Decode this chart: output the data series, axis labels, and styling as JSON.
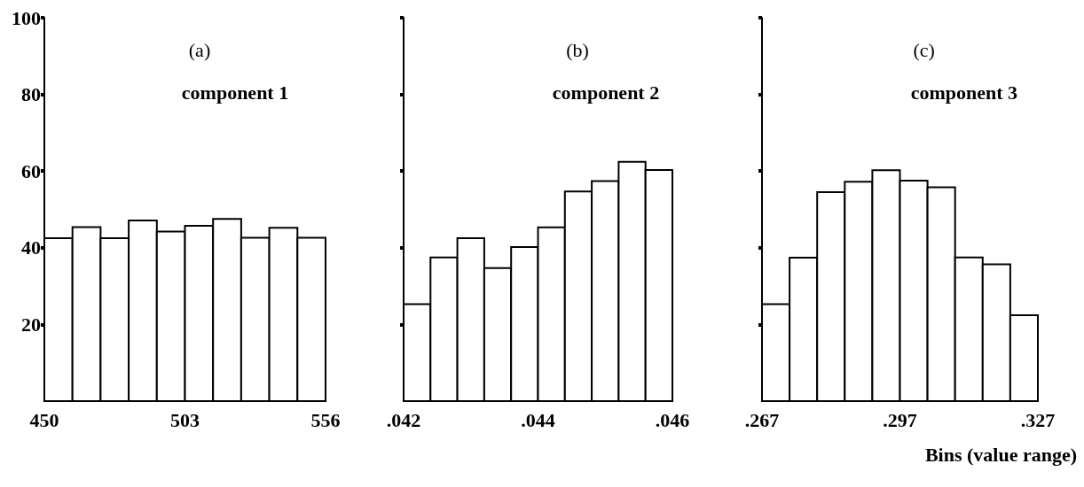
{
  "chart_data": [
    {
      "type": "histogram",
      "title": "(a)",
      "subtitle": "component 1",
      "color": "#ffffff",
      "bins": [
        450,
        460.6,
        471.2,
        481.8,
        492.4,
        503,
        513.6,
        524.2,
        534.8,
        545.4,
        556
      ],
      "values": [
        42.5,
        45.4,
        42.5,
        47.1,
        44.2,
        45.7,
        47.5,
        42.6,
        45.2,
        42.6
      ],
      "xlim": [
        450,
        556
      ],
      "xticks": [
        450,
        503,
        556
      ],
      "ylim": [
        0,
        100
      ],
      "yticks": [
        20,
        40,
        60,
        80,
        100
      ],
      "grid": false
    },
    {
      "type": "histogram",
      "title": "(b)",
      "subtitle": "component 2",
      "color": "#ffffff",
      "bins": [
        0.042,
        0.0424,
        0.0428,
        0.0432,
        0.0436,
        0.044,
        0.0444,
        0.0448,
        0.0452,
        0.0456,
        0.046
      ],
      "values": [
        25.3,
        37.5,
        42.5,
        34.7,
        40.2,
        45.3,
        54.7,
        57.4,
        62.4,
        60.3
      ],
      "xlim": [
        0.042,
        0.046
      ],
      "xticks": [
        {
          "value": 0.042,
          "label": ".042"
        },
        {
          "value": 0.044,
          "label": ".044"
        },
        {
          "value": 0.046,
          "label": ".046"
        }
      ],
      "ylim": [
        0,
        100
      ],
      "yticks": [
        20,
        40,
        60,
        80,
        100
      ],
      "tick_labels": "x",
      "grid": false
    },
    {
      "type": "histogram",
      "title": "(c)",
      "subtitle": "component 3",
      "xlabel": "Bins (value range)",
      "color": "#ffffff",
      "bins": [
        0.267,
        0.273,
        0.279,
        0.285,
        0.291,
        0.297,
        0.303,
        0.309,
        0.315,
        0.321,
        0.327
      ],
      "values": [
        25.3,
        37.4,
        54.5,
        57.2,
        60.2,
        57.5,
        55.8,
        37.5,
        35.7,
        22.4
      ],
      "xlim": [
        0.267,
        0.327
      ],
      "xticks": [
        {
          "value": 0.267,
          "label": ".267"
        },
        {
          "value": 0.297,
          "label": ".297"
        },
        {
          "value": 0.327,
          "label": ".327"
        }
      ],
      "ylim": [
        0,
        100
      ],
      "yticks": [
        20,
        40,
        60,
        80,
        100
      ],
      "tick_labels": "x",
      "grid": false
    }
  ]
}
